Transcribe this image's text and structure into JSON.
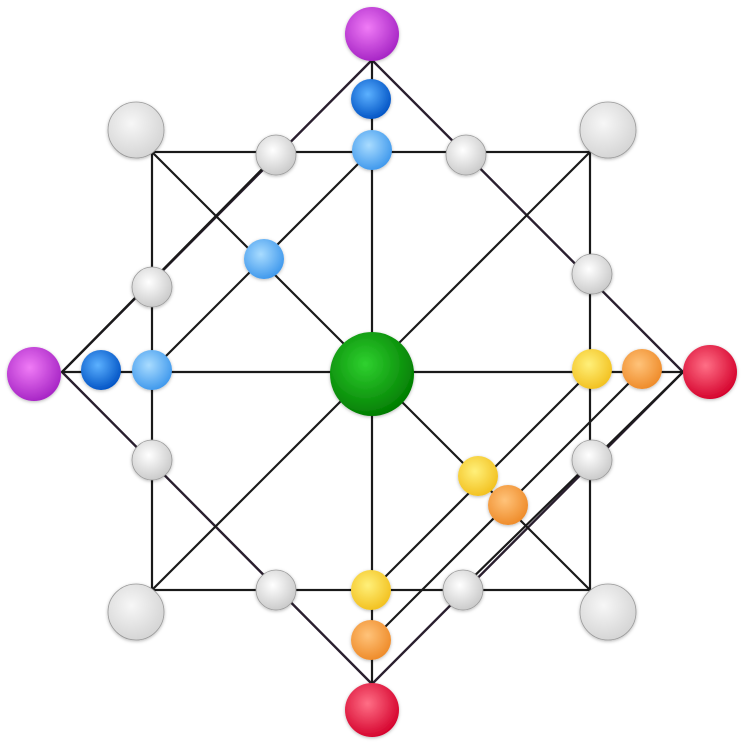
{
  "board": {
    "line_color": "#1a1a1a",
    "background": "#ffffff"
  },
  "piece_colors": {
    "green": [
      "#2fd12f",
      "#007a00"
    ],
    "grey": [
      "#ffffff",
      "#c9c9c9"
    ],
    "corner-grey": [
      "#f7f7f7",
      "#d4d4d4"
    ],
    "purple": [
      "#f07bf6",
      "#a523c4"
    ],
    "red": [
      "#ff6f86",
      "#d4002b"
    ],
    "orange": [
      "#ffc37a",
      "#ee8a28"
    ],
    "yellow": [
      "#fff07a",
      "#f2c01e"
    ],
    "light-blue": [
      "#a9dcff",
      "#3d97ec"
    ],
    "dark-blue": [
      "#5cb1ff",
      "#0052c4"
    ]
  },
  "pieces": [
    {
      "id": "center-green",
      "color": "green",
      "interactable": true
    },
    {
      "id": "corner-grey-tl",
      "color": "corner-grey",
      "interactable": true
    },
    {
      "id": "corner-grey-tr",
      "color": "corner-grey",
      "interactable": true
    },
    {
      "id": "corner-grey-bl",
      "color": "corner-grey",
      "interactable": true
    },
    {
      "id": "corner-grey-br",
      "color": "corner-grey",
      "interactable": true
    },
    {
      "id": "purple-top",
      "color": "purple",
      "interactable": true
    },
    {
      "id": "purple-left",
      "color": "purple",
      "interactable": true
    },
    {
      "id": "red-right",
      "color": "red",
      "interactable": true
    },
    {
      "id": "red-bottom",
      "color": "red",
      "interactable": true
    },
    {
      "id": "dark-blue-top",
      "color": "dark-blue",
      "interactable": true
    },
    {
      "id": "light-blue-top",
      "color": "light-blue",
      "interactable": true
    },
    {
      "id": "light-blue-diag",
      "color": "light-blue",
      "interactable": true
    },
    {
      "id": "dark-blue-left",
      "color": "dark-blue",
      "interactable": true
    },
    {
      "id": "light-blue-left",
      "color": "light-blue",
      "interactable": true
    },
    {
      "id": "yellow-right",
      "color": "yellow",
      "interactable": true
    },
    {
      "id": "orange-right",
      "color": "orange",
      "interactable": true
    },
    {
      "id": "yellow-diag",
      "color": "yellow",
      "interactable": true
    },
    {
      "id": "orange-diag",
      "color": "orange",
      "interactable": true
    },
    {
      "id": "yellow-bottom",
      "color": "yellow",
      "interactable": true
    },
    {
      "id": "orange-bottom",
      "color": "orange",
      "interactable": true
    },
    {
      "id": "grey-top-left",
      "color": "grey",
      "interactable": true
    },
    {
      "id": "grey-top-right",
      "color": "grey",
      "interactable": true
    },
    {
      "id": "grey-left-upper",
      "color": "grey",
      "interactable": true
    },
    {
      "id": "grey-left-lower",
      "color": "grey",
      "interactable": true
    },
    {
      "id": "grey-right-upper",
      "color": "grey",
      "interactable": true
    },
    {
      "id": "grey-right-lower",
      "color": "grey",
      "interactable": true
    },
    {
      "id": "grey-bottom-left",
      "color": "grey",
      "interactable": true
    },
    {
      "id": "grey-bottom-right",
      "color": "grey",
      "interactable": true
    }
  ]
}
